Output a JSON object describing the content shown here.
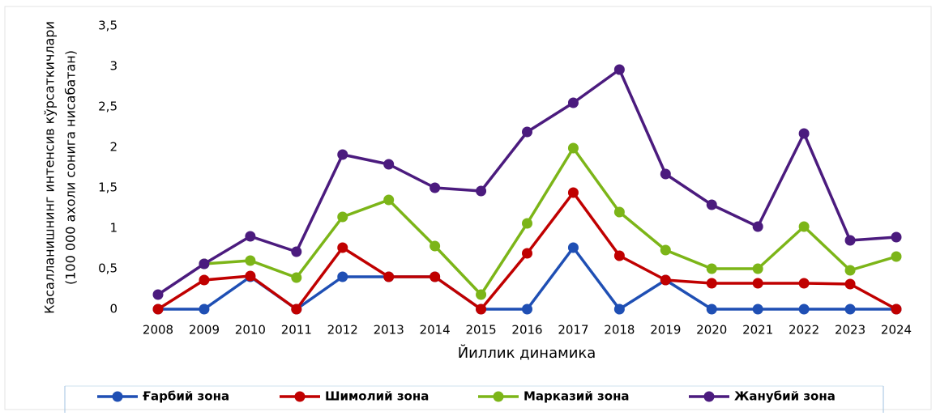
{
  "chart_data": {
    "type": "line",
    "ylabel": [
      "Касалланишнинг интенсив кўрсаткичлари",
      "(100 000 ахоли сонига нисабатан)"
    ],
    "xlabel": "Йиллик динамика",
    "categories": [
      "2008",
      "2009",
      "2010",
      "2011",
      "2012",
      "2013",
      "2014",
      "2015",
      "2016",
      "2017",
      "2018",
      "2019",
      "2020",
      "2021",
      "2022",
      "2023",
      "2024"
    ],
    "series": [
      {
        "name": "Ғарбий зона",
        "color": "#1f4fb4",
        "values": [
          0,
          0,
          0.4,
          0,
          0.4,
          0.4,
          0.4,
          0,
          0,
          0.76,
          0,
          0.36,
          0,
          0,
          0,
          0,
          0
        ]
      },
      {
        "name": "Шимолий зона",
        "color": "#c00000",
        "values": [
          0,
          0.36,
          0.41,
          0,
          0.76,
          0.4,
          0.4,
          0,
          0.69,
          1.44,
          0.66,
          0.36,
          0.32,
          0.32,
          0.32,
          0.31,
          0
        ]
      },
      {
        "name": "Марказий зона",
        "color": "#7cb518",
        "values": [
          null,
          0.56,
          0.6,
          0.39,
          1.14,
          1.35,
          0.78,
          0.18,
          1.06,
          1.99,
          1.2,
          0.73,
          0.5,
          0.5,
          1.02,
          0.48,
          0.65
        ]
      },
      {
        "name": "Жанубий зона",
        "color": "#4b1b7e",
        "values": [
          0.18,
          0.56,
          0.9,
          0.71,
          1.91,
          1.79,
          1.5,
          1.46,
          2.19,
          2.55,
          2.96,
          1.67,
          1.29,
          1.02,
          2.17,
          0.85,
          0.89
        ]
      }
    ],
    "ylim": [
      0,
      3.5
    ],
    "yticks": [
      0,
      {
        "value": 0.5,
        "label": "0,5"
      },
      1,
      {
        "value": 1.5,
        "label": "1,5"
      },
      2,
      {
        "value": 2.5,
        "label": "2,5"
      },
      3,
      {
        "value": 3.5,
        "label": "3,5"
      }
    ],
    "grid": false,
    "legend": "bottom"
  }
}
